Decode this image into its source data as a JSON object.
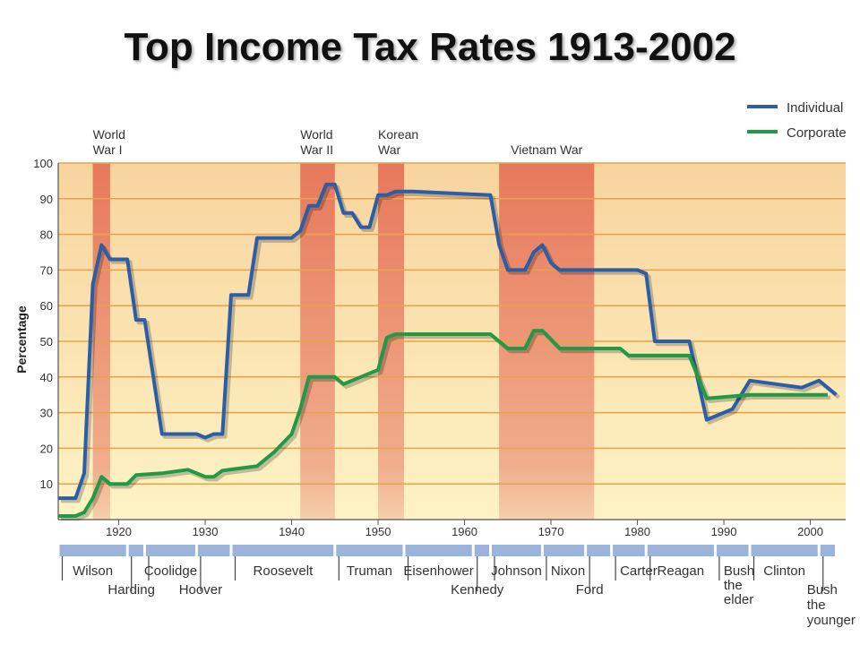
{
  "chart_data": {
    "type": "line",
    "title": "Top Income Tax Rates 1913-2002",
    "ylabel": "Percentage",
    "xlim": [
      1913,
      2004
    ],
    "ylim": [
      0,
      100
    ],
    "y_ticks": [
      10,
      20,
      30,
      40,
      50,
      60,
      70,
      80,
      90,
      100
    ],
    "x_ticks": [
      1920,
      1930,
      1940,
      1950,
      1960,
      1970,
      1980,
      1990,
      2000
    ],
    "legend": "top-right",
    "series": [
      {
        "name": "Individual",
        "color": "#2a5ea8",
        "points": [
          [
            1913,
            6
          ],
          [
            1915,
            6
          ],
          [
            1916,
            13
          ],
          [
            1917,
            66
          ],
          [
            1918,
            77
          ],
          [
            1919,
            73
          ],
          [
            1921,
            73
          ],
          [
            1922,
            56
          ],
          [
            1923,
            56
          ],
          [
            1925,
            24
          ],
          [
            1929,
            24
          ],
          [
            1930,
            23
          ],
          [
            1931,
            24
          ],
          [
            1932,
            24
          ],
          [
            1933,
            63
          ],
          [
            1935,
            63
          ],
          [
            1936,
            79
          ],
          [
            1940,
            79
          ],
          [
            1941,
            81
          ],
          [
            1942,
            88
          ],
          [
            1943,
            88
          ],
          [
            1944,
            94
          ],
          [
            1945,
            94
          ],
          [
            1946,
            86
          ],
          [
            1947,
            86
          ],
          [
            1948,
            82
          ],
          [
            1949,
            82
          ],
          [
            1950,
            91
          ],
          [
            1951,
            91
          ],
          [
            1952,
            92
          ],
          [
            1954,
            92
          ],
          [
            1963,
            91
          ],
          [
            1964,
            77
          ],
          [
            1965,
            70
          ],
          [
            1967,
            70
          ],
          [
            1968,
            75
          ],
          [
            1969,
            77
          ],
          [
            1970,
            72
          ],
          [
            1971,
            70
          ],
          [
            1980,
            70
          ],
          [
            1981,
            69
          ],
          [
            1982,
            50
          ],
          [
            1986,
            50
          ],
          [
            1988,
            28
          ],
          [
            1991,
            31
          ],
          [
            1993,
            39
          ],
          [
            1999,
            37
          ],
          [
            2001,
            39
          ],
          [
            2003,
            35
          ]
        ]
      },
      {
        "name": "Corporate",
        "color": "#1e9b45",
        "points": [
          [
            1913,
            1
          ],
          [
            1915,
            1
          ],
          [
            1916,
            2
          ],
          [
            1917,
            6
          ],
          [
            1918,
            12
          ],
          [
            1919,
            10
          ],
          [
            1921,
            10
          ],
          [
            1922,
            12.5
          ],
          [
            1925,
            13
          ],
          [
            1928,
            14
          ],
          [
            1930,
            12
          ],
          [
            1931,
            12
          ],
          [
            1932,
            13.75
          ],
          [
            1936,
            15
          ],
          [
            1938,
            19
          ],
          [
            1940,
            24
          ],
          [
            1941,
            31
          ],
          [
            1942,
            40
          ],
          [
            1945,
            40
          ],
          [
            1946,
            38
          ],
          [
            1950,
            42
          ],
          [
            1951,
            51
          ],
          [
            1952,
            52
          ],
          [
            1963,
            52
          ],
          [
            1964,
            50
          ],
          [
            1965,
            48
          ],
          [
            1967,
            48
          ],
          [
            1968,
            53
          ],
          [
            1969,
            53
          ],
          [
            1971,
            48
          ],
          [
            1978,
            48
          ],
          [
            1979,
            46
          ],
          [
            1986,
            46
          ],
          [
            1987,
            40
          ],
          [
            1988,
            34
          ],
          [
            1993,
            35
          ],
          [
            2002,
            35
          ]
        ]
      }
    ],
    "wars": [
      {
        "label": "World War I",
        "line1": "World",
        "line2": "War I",
        "start": 1917,
        "end": 1919
      },
      {
        "label": "World War II",
        "line1": "World",
        "line2": "War II",
        "start": 1941,
        "end": 1945
      },
      {
        "label": "Korean War",
        "line1": "Korean",
        "line2": "War",
        "start": 1950,
        "end": 1953
      },
      {
        "label": "Vietnam War",
        "line1": "Vietnam War",
        "line2": "",
        "start": 1964,
        "end": 1975
      }
    ],
    "presidents": [
      {
        "name": "Wilson",
        "start": 1913,
        "end": 1921,
        "row": 0
      },
      {
        "name": "Harding",
        "start": 1921,
        "end": 1923,
        "row": 1
      },
      {
        "name": "Coolidge",
        "start": 1923,
        "end": 1929,
        "row": 0
      },
      {
        "name": "Hoover",
        "start": 1929,
        "end": 1933,
        "row": 1
      },
      {
        "name": "Roosevelt",
        "start": 1933,
        "end": 1945,
        "row": 0
      },
      {
        "name": "Truman",
        "start": 1945,
        "end": 1953,
        "row": 0
      },
      {
        "name": "Eisenhower",
        "start": 1953,
        "end": 1961,
        "row": 0
      },
      {
        "name": "Kennedy",
        "start": 1961,
        "end": 1963,
        "row": 1
      },
      {
        "name": "Johnson",
        "start": 1963,
        "end": 1969,
        "row": 0
      },
      {
        "name": "Nixon",
        "start": 1969,
        "end": 1974,
        "row": 0
      },
      {
        "name": "Ford",
        "start": 1974,
        "end": 1977,
        "row": 1
      },
      {
        "name": "Carter",
        "start": 1977,
        "end": 1981,
        "row": 0
      },
      {
        "name": "Reagan",
        "start": 1981,
        "end": 1989,
        "row": 0
      },
      {
        "name": "Bush the elder",
        "start": 1989,
        "end": 1993,
        "row": 0
      },
      {
        "name": "Clinton",
        "start": 1993,
        "end": 2001,
        "row": 0
      },
      {
        "name": "Bush the younger",
        "start": 2001,
        "end": 2003,
        "row": 1
      }
    ]
  }
}
